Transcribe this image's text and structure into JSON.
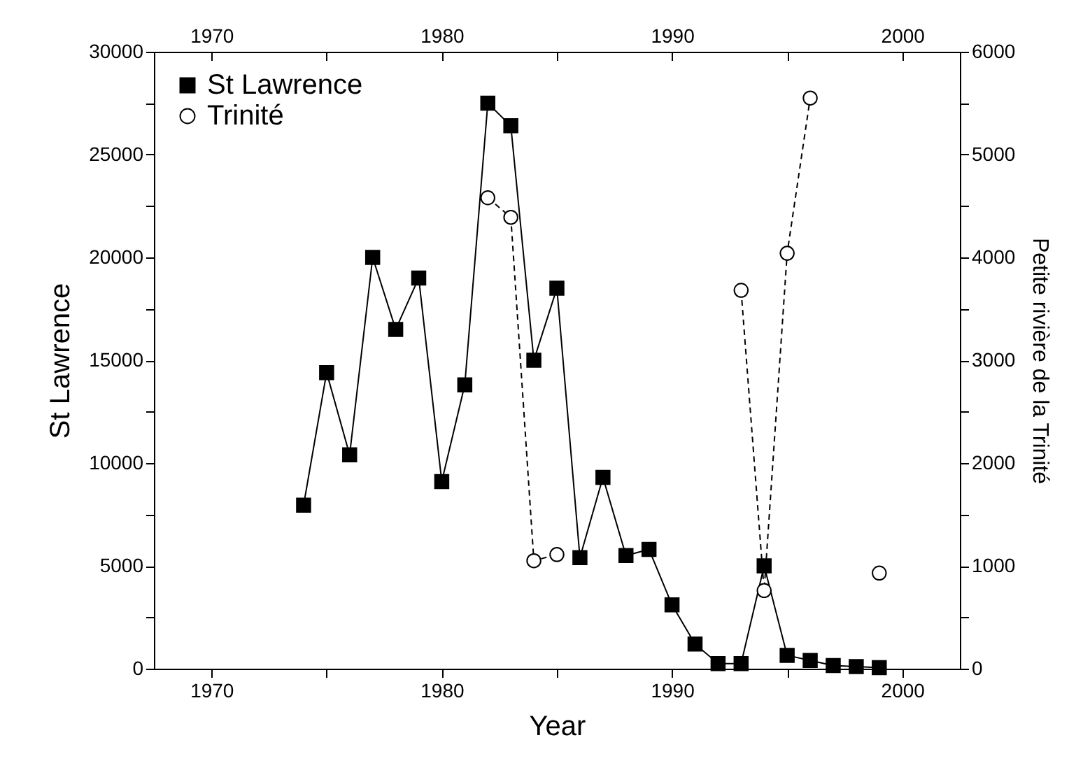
{
  "chart_data": {
    "type": "line",
    "xlabel": "Year",
    "ylabel": "St Lawrence",
    "y2label": "Petite rivière de la Trinité",
    "x": [
      1974,
      1975,
      1976,
      1977,
      1978,
      1979,
      1980,
      1981,
      1982,
      1983,
      1984,
      1985,
      1986,
      1987,
      1988,
      1989,
      1990,
      1991,
      1992,
      1993,
      1994,
      1995,
      1996,
      1997,
      1998,
      1999
    ],
    "series": [
      {
        "name": "St Lawrence",
        "color": "#000000",
        "marker": "square",
        "line_style": "solid",
        "values": [
          7950,
          14400,
          10400,
          20000,
          16500,
          19000,
          9100,
          13800,
          27500,
          26400,
          15000,
          18500,
          5400,
          9300,
          5500,
          5800,
          3100,
          1200,
          250,
          250,
          5000,
          650,
          400,
          150,
          100,
          50
        ]
      },
      {
        "name": "Trinité",
        "color": "#000000",
        "marker": "circle",
        "line_style": "dashed",
        "axis": "y2",
        "values": [
          null,
          null,
          null,
          null,
          null,
          null,
          null,
          null,
          4580,
          4390,
          1050,
          1110,
          null,
          null,
          null,
          null,
          null,
          null,
          null,
          3680,
          760,
          4040,
          5550,
          null,
          null,
          930
        ]
      }
    ],
    "xlim": [
      1967.5,
      2002.5
    ],
    "xticks": [
      1970,
      {
        "value": 1975,
        "label": null
      },
      1980,
      {
        "value": 1985,
        "label": null
      },
      1990,
      {
        "value": 1995,
        "label": null
      },
      2000
    ],
    "x2lim": [
      1967.5,
      2002.5
    ],
    "x2ticks": [
      1970,
      {
        "value": 1975,
        "label": null
      },
      1980,
      {
        "value": 1985,
        "label": null
      },
      1990,
      {
        "value": 1995,
        "label": null
      },
      2000
    ],
    "ylim": [
      0,
      30000
    ],
    "yticks": [
      0,
      {
        "value": 2500,
        "label": null
      },
      5000,
      {
        "value": 7500,
        "label": null
      },
      10000,
      {
        "value": 12500,
        "label": null
      },
      15000,
      {
        "value": 17500,
        "label": null
      },
      20000,
      {
        "value": 22500,
        "label": null
      },
      25000,
      {
        "value": 27500,
        "label": null
      },
      30000
    ],
    "y2lim": [
      0,
      6000
    ],
    "y2ticks": [
      0,
      {
        "value": 500,
        "label": null
      },
      1000,
      {
        "value": 1500,
        "label": null
      },
      2000,
      {
        "value": 2500,
        "label": null
      },
      3000,
      {
        "value": 3500,
        "label": null
      },
      4000,
      {
        "value": 4500,
        "label": null
      },
      5000,
      {
        "value": 5500,
        "label": null
      },
      6000
    ],
    "legend": "top left",
    "grid": false
  }
}
